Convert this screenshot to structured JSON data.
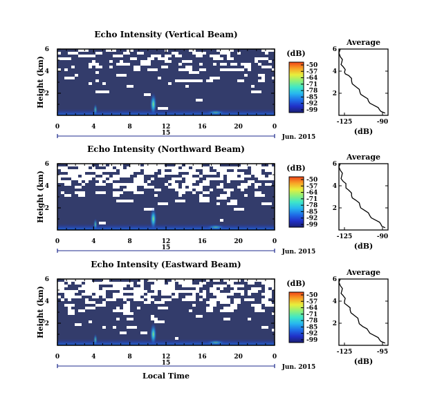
{
  "colors": {
    "background_field": "#333c6b",
    "missing": "#ffffff",
    "axis": "#000000",
    "date_line": "#1e2a8c",
    "colormap": [
      "#1a1f73",
      "#2030c8",
      "#1f6fe8",
      "#27b7ef",
      "#3ee6c9",
      "#8ef07a",
      "#e8ee3c",
      "#f8a326",
      "#f04418"
    ]
  },
  "colorbar": {
    "unit_label": "(dB)",
    "ticks": [
      "-50",
      "-57",
      "-64",
      "-71",
      "-78",
      "-85",
      "-92",
      "-99"
    ]
  },
  "x_axis_label": "Local Time",
  "date_label": "Jun. 2015",
  "day_label": "15",
  "chart_data": [
    {
      "type": "heatmap",
      "name": "vertical",
      "title": "Echo Intensity (Vertical Beam)",
      "ylabel": "Height (km)",
      "x_ticks": [
        "0",
        "4",
        "8",
        "12",
        "16",
        "20",
        "0"
      ],
      "y_ticks": [
        "6",
        "4",
        "2"
      ],
      "xlim": [
        0,
        24
      ],
      "ylim": [
        0,
        6
      ],
      "average_profile": {
        "title": "Average",
        "xlabel": "(dB)",
        "x_ticks": [
          "-125",
          "-90"
        ],
        "y_ticks": [
          "6",
          "4",
          "2"
        ],
        "xlim": [
          -125,
          -90
        ],
        "ylim": [
          0,
          6
        ],
        "points": [
          [
            -92,
            0.2
          ],
          [
            -96,
            0.5
          ],
          [
            -100,
            0.9
          ],
          [
            -104,
            1.3
          ],
          [
            -107,
            1.7
          ],
          [
            -110,
            2.1
          ],
          [
            -113,
            2.6
          ],
          [
            -116,
            3.1
          ],
          [
            -118,
            3.6
          ],
          [
            -121,
            3.9
          ],
          [
            -122,
            4.4
          ],
          [
            -123,
            4.8
          ],
          [
            -124,
            5.3
          ],
          [
            -124,
            6.0
          ]
        ]
      }
    },
    {
      "type": "heatmap",
      "name": "northward",
      "title": "Echo Intensity (Northward Beam)",
      "ylabel": "Height (km)",
      "x_ticks": [
        "0",
        "4",
        "8",
        "12",
        "16",
        "20",
        "0"
      ],
      "y_ticks": [
        "6",
        "4",
        "2"
      ],
      "xlim": [
        0,
        24
      ],
      "ylim": [
        0,
        6
      ],
      "average_profile": {
        "title": "Average",
        "xlabel": "(dB)",
        "x_ticks": [
          "-125",
          "-90"
        ],
        "y_ticks": [
          "6",
          "4",
          "2"
        ],
        "xlim": [
          -125,
          -90
        ],
        "ylim": [
          0,
          6
        ],
        "points": [
          [
            -92,
            0.2
          ],
          [
            -95,
            0.5
          ],
          [
            -99,
            0.9
          ],
          [
            -103,
            1.3
          ],
          [
            -107,
            1.8
          ],
          [
            -110,
            2.2
          ],
          [
            -113,
            2.7
          ],
          [
            -116,
            3.1
          ],
          [
            -118,
            3.6
          ],
          [
            -120,
            4.0
          ],
          [
            -122,
            4.4
          ],
          [
            -123,
            4.9
          ],
          [
            -124,
            5.4
          ],
          [
            -124,
            6.0
          ]
        ]
      }
    },
    {
      "type": "heatmap",
      "name": "eastward",
      "title": "Echo Intensity (Eastward Beam)",
      "ylabel": "Height (km)",
      "x_ticks": [
        "0",
        "4",
        "8",
        "12",
        "16",
        "20",
        "0"
      ],
      "y_ticks": [
        "6",
        "4",
        "2"
      ],
      "xlim": [
        0,
        24
      ],
      "ylim": [
        0,
        6
      ],
      "average_profile": {
        "title": "Average",
        "xlabel": "(dB)",
        "x_ticks": [
          "-125",
          "-95"
        ],
        "y_ticks": [
          "6",
          "4",
          "2"
        ],
        "xlim": [
          -125,
          -90
        ],
        "ylim": [
          0,
          6
        ],
        "points": [
          [
            -92,
            0.2
          ],
          [
            -96,
            0.5
          ],
          [
            -100,
            0.9
          ],
          [
            -104,
            1.3
          ],
          [
            -108,
            1.7
          ],
          [
            -111,
            2.2
          ],
          [
            -114,
            2.7
          ],
          [
            -117,
            3.2
          ],
          [
            -119,
            3.6
          ],
          [
            -121,
            4.0
          ],
          [
            -122,
            4.5
          ],
          [
            -123,
            4.9
          ],
          [
            -124,
            5.4
          ],
          [
            -124,
            6.0
          ]
        ]
      }
    }
  ]
}
